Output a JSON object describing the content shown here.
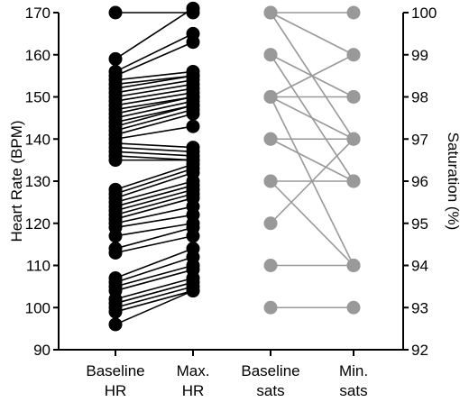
{
  "chart_data": {
    "type": "scatter",
    "title": "",
    "categories": [
      "Baseline\nHR",
      "Max.\nHR",
      "Baseline\nsats",
      "Min.\nsats"
    ],
    "left_axis": {
      "label": "Heart Rate (BPM)",
      "range": [
        90,
        170
      ],
      "ticks": [
        90,
        100,
        110,
        120,
        130,
        140,
        150,
        160,
        170
      ]
    },
    "right_axis": {
      "label": "Saturation (%)",
      "range": [
        92,
        100
      ],
      "ticks": [
        92,
        93,
        94,
        95,
        96,
        97,
        98,
        99,
        100
      ]
    },
    "series": [
      {
        "kind": "heart_rate",
        "color": "#000000",
        "pairs": [
          [
            170,
            170
          ],
          [
            159,
            171
          ],
          [
            156,
            165
          ],
          [
            155,
            163
          ],
          [
            154,
            156
          ],
          [
            153,
            155
          ],
          [
            152,
            155
          ],
          [
            151,
            154
          ],
          [
            150,
            153
          ],
          [
            149,
            152
          ],
          [
            148,
            151
          ],
          [
            147,
            150
          ],
          [
            146,
            150
          ],
          [
            145,
            149
          ],
          [
            144,
            148
          ],
          [
            143,
            148
          ],
          [
            142,
            147
          ],
          [
            141,
            146
          ],
          [
            140,
            143
          ],
          [
            139,
            138
          ],
          [
            138,
            137
          ],
          [
            137,
            136
          ],
          [
            136,
            135
          ],
          [
            135,
            135
          ],
          [
            128,
            134
          ],
          [
            127,
            133
          ],
          [
            126,
            132
          ],
          [
            125,
            130
          ],
          [
            124,
            129
          ],
          [
            123,
            128
          ],
          [
            122,
            127
          ],
          [
            121,
            126
          ],
          [
            120,
            124
          ],
          [
            119,
            122
          ],
          [
            117,
            120
          ],
          [
            114,
            119
          ],
          [
            113,
            117
          ],
          [
            107,
            114
          ],
          [
            106,
            112
          ],
          [
            105,
            110
          ],
          [
            104,
            109
          ],
          [
            102,
            107
          ],
          [
            101,
            106
          ],
          [
            100,
            105
          ],
          [
            99,
            104
          ],
          [
            96,
            104
          ]
        ]
      },
      {
        "kind": "saturation",
        "color": "#999999",
        "pairs": [
          [
            100,
            100
          ],
          [
            100,
            99
          ],
          [
            100,
            97
          ],
          [
            99,
            98
          ],
          [
            99,
            96
          ],
          [
            98,
            99
          ],
          [
            98,
            98
          ],
          [
            98,
            97
          ],
          [
            98,
            94
          ],
          [
            97,
            97
          ],
          [
            97,
            96
          ],
          [
            96,
            96
          ],
          [
            96,
            94
          ],
          [
            95,
            97
          ],
          [
            94,
            94
          ],
          [
            93,
            93
          ]
        ]
      }
    ]
  }
}
